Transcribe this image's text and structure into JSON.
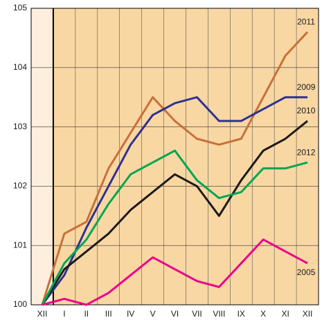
{
  "chart_data": {
    "type": "line",
    "categories": [
      "XII",
      "I",
      "II",
      "III",
      "IV",
      "V",
      "VI",
      "VII",
      "VIII",
      "IX",
      "X",
      "XI",
      "XII"
    ],
    "series": [
      {
        "name": "2011",
        "color": "#c8703a",
        "values": [
          100,
          101.2,
          101.4,
          102.3,
          102.9,
          103.5,
          103.1,
          102.8,
          102.7,
          102.8,
          103.5,
          104.2,
          104.6
        ]
      },
      {
        "name": "2009",
        "color": "#2e3192",
        "values": [
          100,
          100.5,
          101.3,
          102.0,
          102.7,
          103.2,
          103.4,
          103.5,
          103.1,
          103.1,
          103.3,
          103.5,
          103.5
        ]
      },
      {
        "name": "2010",
        "color": "#1a1a1a",
        "values": [
          100,
          100.6,
          100.9,
          101.2,
          101.6,
          101.9,
          102.2,
          102.0,
          101.5,
          102.1,
          102.6,
          102.8,
          103.1
        ]
      },
      {
        "name": "2012",
        "color": "#00a651",
        "values": [
          100,
          100.7,
          101.1,
          101.7,
          102.2,
          102.4,
          102.6,
          102.1,
          101.8,
          101.9,
          102.3,
          102.3,
          102.4
        ]
      },
      {
        "name": "2005",
        "color": "#ec008c",
        "values": [
          100,
          100.1,
          100.0,
          100.2,
          100.5,
          100.8,
          100.6,
          100.4,
          100.3,
          100.7,
          101.1,
          100.9,
          100.7
        ]
      }
    ],
    "ylim": [
      100,
      105
    ],
    "yticks": [
      100,
      101,
      102,
      103,
      104,
      105
    ],
    "grid": true
  }
}
